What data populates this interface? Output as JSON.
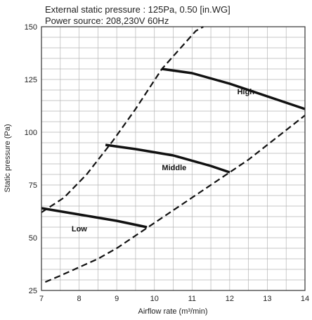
{
  "header": {
    "line1": "External static pressure : 125Pa, 0.50 [in.WG]",
    "line2": "Power source: 208,230V 60Hz"
  },
  "chart_data": {
    "type": "line",
    "xlabel": "Airflow rate (m³/min)",
    "ylabel": "Static pressure  (Pa)",
    "xlim": [
      7,
      14
    ],
    "ylim": [
      25,
      150
    ],
    "x_ticks": [
      "7",
      "8",
      "9",
      "10",
      "11",
      "12",
      "13",
      "14"
    ],
    "y_ticks": [
      "25",
      "50",
      "75",
      "100",
      "125",
      "150"
    ],
    "grid": true,
    "series": [
      {
        "name": "High",
        "style": "solid",
        "points": [
          [
            10.2,
            130
          ],
          [
            11,
            128
          ],
          [
            12,
            123
          ],
          [
            13,
            117
          ],
          [
            14,
            111
          ]
        ]
      },
      {
        "name": "Middle",
        "style": "solid",
        "points": [
          [
            8.7,
            94
          ],
          [
            9.5,
            92
          ],
          [
            10.5,
            89
          ],
          [
            11.5,
            84
          ],
          [
            12,
            81
          ]
        ]
      },
      {
        "name": "Low",
        "style": "solid",
        "points": [
          [
            7,
            64
          ],
          [
            8,
            61
          ],
          [
            9,
            58
          ],
          [
            9.8,
            55
          ]
        ]
      },
      {
        "style": "dashed",
        "points": [
          [
            7,
            62
          ],
          [
            7.6,
            69
          ],
          [
            8.2,
            80
          ],
          [
            8.9,
            96
          ],
          [
            9.5,
            111
          ],
          [
            10.2,
            130
          ],
          [
            11.1,
            148
          ],
          [
            11.3,
            150
          ]
        ]
      },
      {
        "style": "dashed",
        "points": [
          [
            7.1,
            29
          ],
          [
            7.5,
            32
          ],
          [
            8,
            36
          ],
          [
            8.5,
            40
          ],
          [
            9,
            45
          ],
          [
            9.5,
            51
          ],
          [
            10,
            57
          ],
          [
            10.5,
            63
          ],
          [
            11,
            69
          ],
          [
            11.5,
            75
          ],
          [
            12,
            81
          ],
          [
            12.5,
            87
          ],
          [
            13,
            94
          ],
          [
            13.5,
            101
          ],
          [
            14,
            108
          ]
        ]
      }
    ],
    "curve_labels": [
      {
        "text": "High",
        "x": 12.2,
        "y": 118
      },
      {
        "text": "Middle",
        "x": 10.2,
        "y": 82
      },
      {
        "text": "Low",
        "x": 7.8,
        "y": 53
      }
    ]
  }
}
